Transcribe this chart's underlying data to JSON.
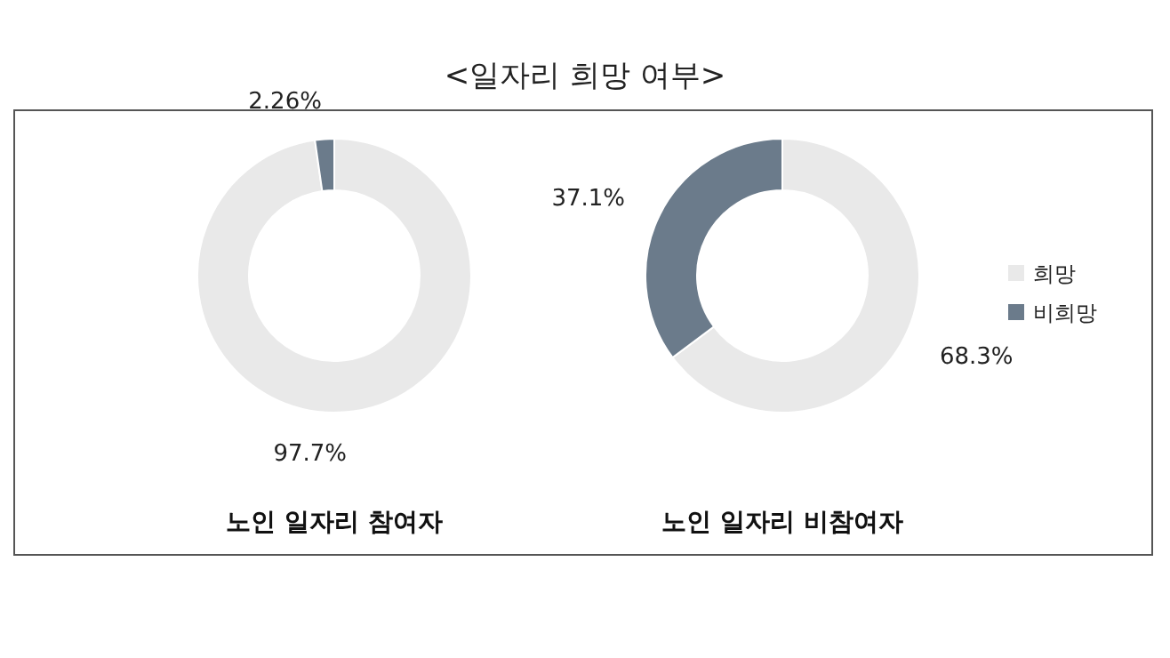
{
  "chart_data": [
    {
      "type": "donut",
      "title": "노인 일자리 참여자",
      "annotations": [
        "<일자리 희망 여부>"
      ],
      "categories": [
        null,
        null
      ],
      "values": [
        97.7,
        2.26
      ],
      "value_labels": [
        "97.7%",
        "2.26%"
      ],
      "colors": [
        "#e9e9e9",
        "#6b7b8b"
      ],
      "legend": false
    },
    {
      "type": "donut",
      "title": "노인 일자리 비참여자",
      "categories": [
        "희망",
        "비희망"
      ],
      "values": [
        68.3,
        37.1
      ],
      "value_labels": [
        "68.3%",
        "37.1%"
      ],
      "colors": [
        "#e9e9e9",
        "#6b7b8b"
      ],
      "legend": "right"
    }
  ]
}
